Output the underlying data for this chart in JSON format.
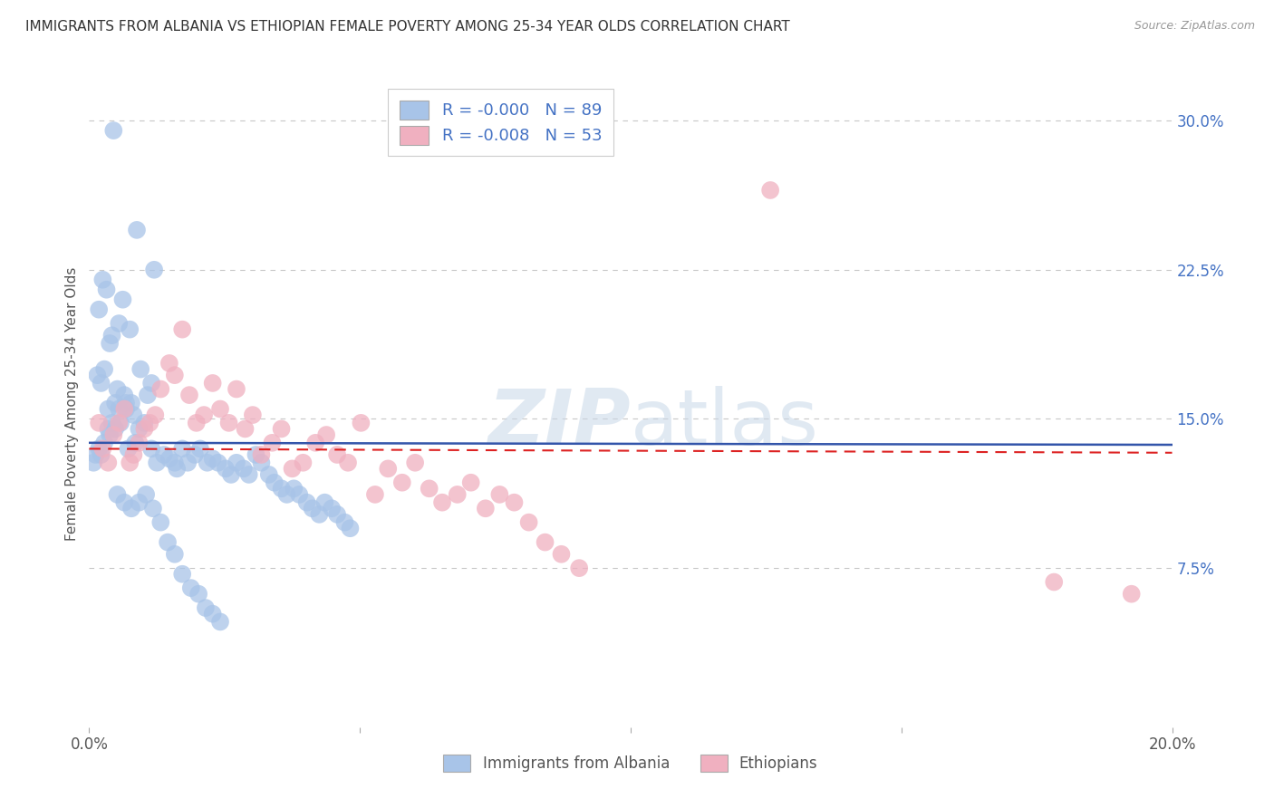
{
  "title": "IMMIGRANTS FROM ALBANIA VS ETHIOPIAN FEMALE POVERTY AMONG 25-34 YEAR OLDS CORRELATION CHART",
  "source": "Source: ZipAtlas.com",
  "ylabel": "Female Poverty Among 25-34 Year Olds",
  "series1_label": "Immigrants from Albania",
  "series2_label": "Ethiopians",
  "series1_R": "-0.000",
  "series1_N": "89",
  "series2_R": "-0.008",
  "series2_N": "53",
  "series1_color": "#a8c4e8",
  "series2_color": "#f0b0c0",
  "series1_line_color": "#3355aa",
  "series2_line_color": "#dd2222",
  "background_color": "#ffffff",
  "grid_color": "#c8c8c8",
  "watermark_color": "#c8d8e8",
  "series1_x": [
    0.0045,
    0.0088,
    0.012,
    0.0025,
    0.0032,
    0.0018,
    0.0055,
    0.0042,
    0.0062,
    0.0075,
    0.0038,
    0.0028,
    0.0015,
    0.0022,
    0.0052,
    0.0065,
    0.0048,
    0.0035,
    0.0082,
    0.0095,
    0.0115,
    0.0108,
    0.0078,
    0.0068,
    0.0058,
    0.0048,
    0.0038,
    0.0028,
    0.0018,
    0.0012,
    0.0008,
    0.0022,
    0.0035,
    0.0042,
    0.0055,
    0.0068,
    0.0072,
    0.0085,
    0.0092,
    0.0102,
    0.0115,
    0.0125,
    0.0138,
    0.0148,
    0.0158,
    0.0162,
    0.0172,
    0.0182,
    0.0195,
    0.0205,
    0.0218,
    0.0228,
    0.0238,
    0.0252,
    0.0262,
    0.0272,
    0.0285,
    0.0295,
    0.0308,
    0.0318,
    0.0332,
    0.0342,
    0.0355,
    0.0365,
    0.0378,
    0.0388,
    0.0402,
    0.0412,
    0.0425,
    0.0435,
    0.0448,
    0.0458,
    0.0472,
    0.0482,
    0.0052,
    0.0065,
    0.0078,
    0.0092,
    0.0105,
    0.0118,
    0.0132,
    0.0145,
    0.0158,
    0.0172,
    0.0188,
    0.0202,
    0.0215,
    0.0228,
    0.0242
  ],
  "series1_y": [
    0.295,
    0.245,
    0.225,
    0.22,
    0.215,
    0.205,
    0.198,
    0.192,
    0.21,
    0.195,
    0.188,
    0.175,
    0.172,
    0.168,
    0.165,
    0.162,
    0.158,
    0.155,
    0.152,
    0.175,
    0.168,
    0.162,
    0.158,
    0.155,
    0.148,
    0.145,
    0.142,
    0.138,
    0.135,
    0.132,
    0.128,
    0.132,
    0.145,
    0.148,
    0.155,
    0.158,
    0.135,
    0.138,
    0.145,
    0.148,
    0.135,
    0.128,
    0.132,
    0.13,
    0.128,
    0.125,
    0.135,
    0.128,
    0.132,
    0.135,
    0.128,
    0.13,
    0.128,
    0.125,
    0.122,
    0.128,
    0.125,
    0.122,
    0.132,
    0.128,
    0.122,
    0.118,
    0.115,
    0.112,
    0.115,
    0.112,
    0.108,
    0.105,
    0.102,
    0.108,
    0.105,
    0.102,
    0.098,
    0.095,
    0.112,
    0.108,
    0.105,
    0.108,
    0.112,
    0.105,
    0.098,
    0.088,
    0.082,
    0.072,
    0.065,
    0.062,
    0.055,
    0.052,
    0.048
  ],
  "series2_x": [
    0.0018,
    0.0025,
    0.0035,
    0.0045,
    0.0055,
    0.0065,
    0.0075,
    0.0082,
    0.0092,
    0.0102,
    0.0112,
    0.0122,
    0.0132,
    0.0148,
    0.0158,
    0.0172,
    0.0185,
    0.0198,
    0.0212,
    0.0228,
    0.0242,
    0.0258,
    0.0272,
    0.0288,
    0.0302,
    0.0318,
    0.0338,
    0.0355,
    0.0375,
    0.0395,
    0.0418,
    0.0438,
    0.0458,
    0.0478,
    0.0502,
    0.0528,
    0.0552,
    0.0578,
    0.0602,
    0.0628,
    0.0652,
    0.068,
    0.0705,
    0.0732,
    0.0758,
    0.0785,
    0.0812,
    0.0842,
    0.0872,
    0.0905,
    0.1258,
    0.1782,
    0.1925
  ],
  "series2_y": [
    0.148,
    0.135,
    0.128,
    0.142,
    0.148,
    0.155,
    0.128,
    0.132,
    0.138,
    0.145,
    0.148,
    0.152,
    0.165,
    0.178,
    0.172,
    0.195,
    0.162,
    0.148,
    0.152,
    0.168,
    0.155,
    0.148,
    0.165,
    0.145,
    0.152,
    0.132,
    0.138,
    0.145,
    0.125,
    0.128,
    0.138,
    0.142,
    0.132,
    0.128,
    0.148,
    0.112,
    0.125,
    0.118,
    0.128,
    0.115,
    0.108,
    0.112,
    0.118,
    0.105,
    0.112,
    0.108,
    0.098,
    0.088,
    0.082,
    0.075,
    0.265,
    0.068,
    0.062
  ]
}
